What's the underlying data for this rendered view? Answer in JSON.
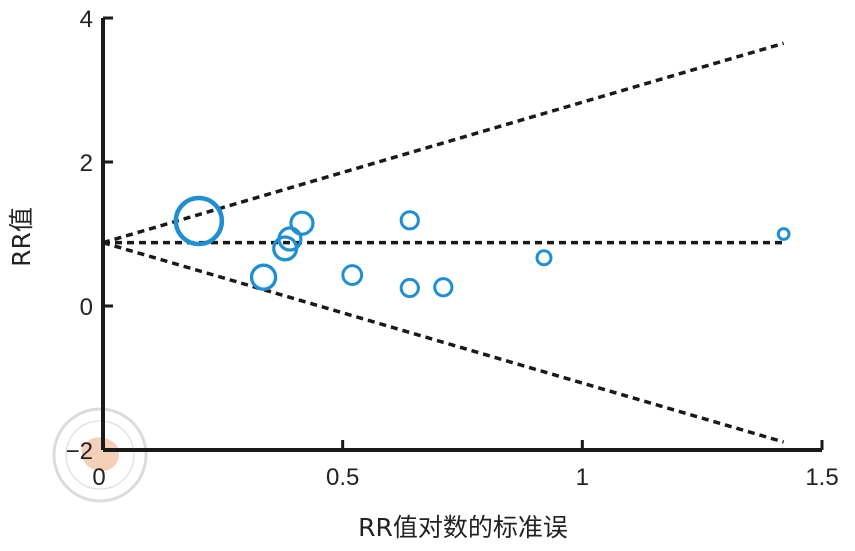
{
  "chart_data": {
    "type": "scatter",
    "title": "",
    "xlabel": "RR值对数的标准误",
    "ylabel": "RR值",
    "xlim": [
      0,
      1.5
    ],
    "ylim": [
      -2,
      4
    ],
    "x_ticks": [
      0,
      0.5,
      1,
      1.5
    ],
    "y_ticks": [
      -2,
      0,
      2,
      4
    ],
    "x_tick_labels": [
      "0",
      "0.5",
      "1",
      "1.5"
    ],
    "y_tick_labels": [
      "−2",
      "0",
      "2",
      "4"
    ],
    "point_color": "#1f8fd2",
    "pooled_estimate": 0.88,
    "funnel_slope": 1.95,
    "funnel_x_max": 1.42,
    "points": [
      {
        "x": 0.2,
        "y": 1.18,
        "weight": 1.0
      },
      {
        "x": 0.335,
        "y": 0.4,
        "weight": 0.45
      },
      {
        "x": 0.38,
        "y": 0.8,
        "weight": 0.42
      },
      {
        "x": 0.39,
        "y": 0.93,
        "weight": 0.4
      },
      {
        "x": 0.415,
        "y": 1.15,
        "weight": 0.4
      },
      {
        "x": 0.52,
        "y": 0.43,
        "weight": 0.32
      },
      {
        "x": 0.64,
        "y": 1.19,
        "weight": 0.28
      },
      {
        "x": 0.64,
        "y": 0.25,
        "weight": 0.28
      },
      {
        "x": 0.71,
        "y": 0.26,
        "weight": 0.28
      },
      {
        "x": 0.92,
        "y": 0.67,
        "weight": 0.2
      },
      {
        "x": 1.42,
        "y": 1.0,
        "weight": 0.12
      }
    ]
  }
}
